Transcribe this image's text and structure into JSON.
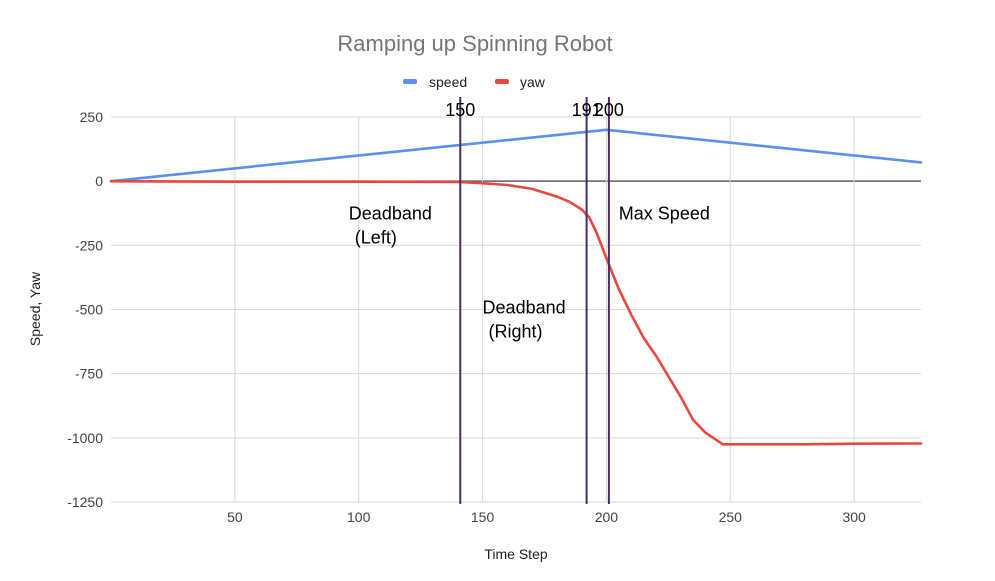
{
  "chart_data": {
    "type": "line",
    "title": "Ramping up Spinning Robot",
    "xlabel": "Time Step",
    "ylabel": "Speed, Yaw",
    "xlim": [
      0,
      327
    ],
    "ylim": [
      -1250,
      250
    ],
    "xticks": [
      50,
      100,
      150,
      200,
      250,
      300
    ],
    "yticks": [
      250,
      0,
      -250,
      -500,
      -750,
      -1000,
      -1250
    ],
    "grid": true,
    "legend_position": "top-center",
    "series": [
      {
        "name": "speed",
        "color": "#5b8ff0",
        "x": [
          0,
          200,
          327
        ],
        "y": [
          0,
          200,
          73
        ]
      },
      {
        "name": "yaw",
        "color": "#e8493f",
        "x": [
          0,
          50,
          100,
          140,
          150,
          160,
          170,
          180,
          185,
          190,
          193,
          196,
          200,
          205,
          210,
          215,
          220,
          225,
          230,
          235,
          240,
          247,
          260,
          280,
          300,
          327
        ],
        "y": [
          0,
          -2,
          -2,
          -3,
          -8,
          -15,
          -30,
          -60,
          -80,
          -110,
          -140,
          -200,
          -300,
          -420,
          -520,
          -610,
          -680,
          -760,
          -840,
          -930,
          -980,
          -1025,
          -1025,
          -1025,
          -1023,
          -1022
        ]
      }
    ],
    "annotations": {
      "vlines": [
        {
          "x": 141,
          "label": "150"
        },
        {
          "x": 192,
          "label": "191"
        },
        {
          "x": 201,
          "label": "200"
        }
      ],
      "texts": [
        {
          "x": 96,
          "y": -150,
          "lines": [
            "Deadband",
            "(Left)"
          ]
        },
        {
          "x": 150,
          "y": -515,
          "lines": [
            "Deadband",
            "(Right)"
          ]
        },
        {
          "x": 205,
          "y": -150,
          "lines": [
            "Max Speed"
          ]
        }
      ]
    }
  }
}
